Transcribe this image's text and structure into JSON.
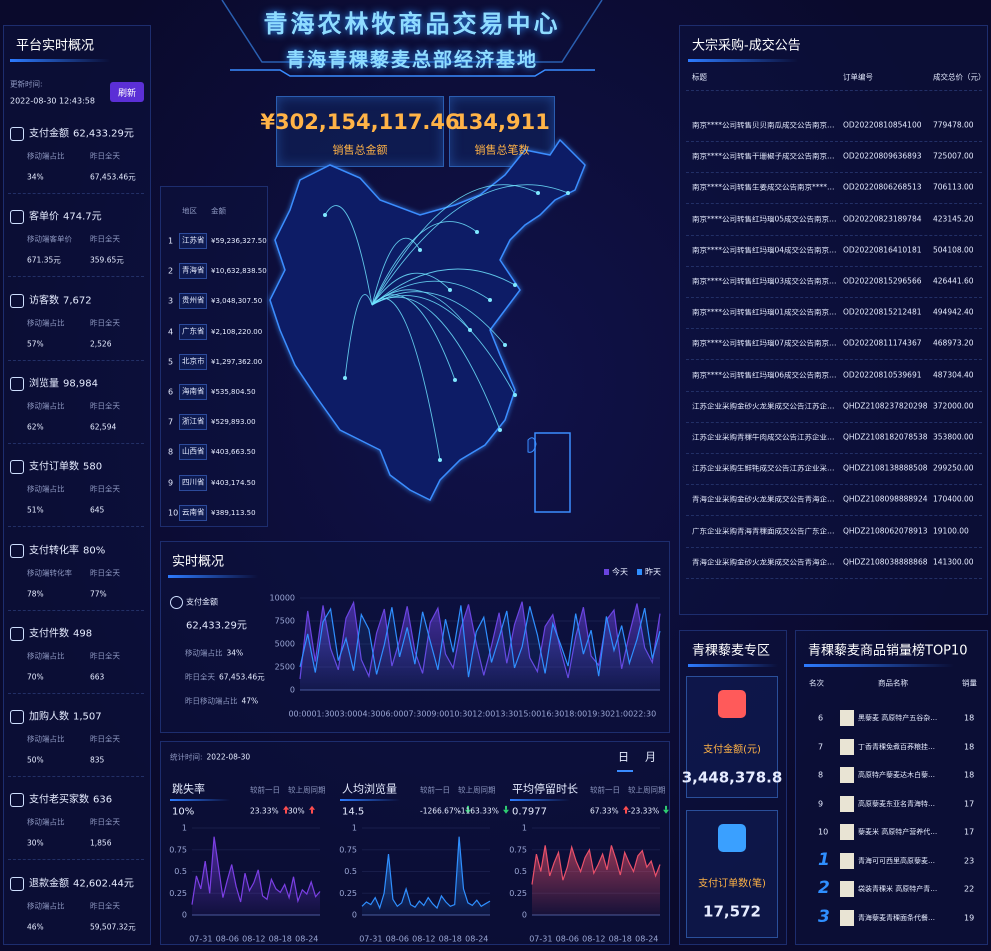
{
  "header": {
    "title": "青海农林牧商品交易中心",
    "subtitle": "青海青稞藜麦总部经济基地"
  },
  "kpi": [
    {
      "value": "¥302,154,117.46",
      "label": "销售总金额"
    },
    {
      "value": "134,911",
      "label": "销售总笔数"
    }
  ],
  "overview": {
    "title": "平台实时概况",
    "update_label": "更新时间:",
    "update_time": "2022-08-30 12:43:58",
    "refresh": "刷新",
    "metrics": [
      {
        "label": "支付金额",
        "value": "62,433.29元",
        "sub": [
          {
            "label": "移动端占比",
            "value": "34%"
          },
          {
            "label": "昨日全天",
            "value": "67,453.46元"
          }
        ]
      },
      {
        "label": "客单价",
        "value": "474.7元",
        "sub": [
          {
            "label": "移动端客单价",
            "value": "671.35元"
          },
          {
            "label": "昨日全天",
            "value": "359.65元"
          }
        ]
      },
      {
        "label": "访客数",
        "value": "7,672",
        "sub": [
          {
            "label": "移动端占比",
            "value": "57%"
          },
          {
            "label": "昨日全天",
            "value": "2,526"
          }
        ]
      },
      {
        "label": "浏览量",
        "value": "98,984",
        "sub": [
          {
            "label": "移动端占比",
            "value": "62%"
          },
          {
            "label": "昨日全天",
            "value": "62,594"
          }
        ]
      },
      {
        "label": "支付订单数",
        "value": "580",
        "sub": [
          {
            "label": "移动端占比",
            "value": "51%"
          },
          {
            "label": "昨日全天",
            "value": "645"
          }
        ]
      },
      {
        "label": "支付转化率",
        "value": "80%",
        "sub": [
          {
            "label": "移动端转化率",
            "value": "78%"
          },
          {
            "label": "昨日全天",
            "value": "77%"
          }
        ]
      },
      {
        "label": "支付件数",
        "value": "498",
        "sub": [
          {
            "label": "移动端占比",
            "value": "70%"
          },
          {
            "label": "昨日全天",
            "value": "663"
          }
        ]
      },
      {
        "label": "加购人数",
        "value": "1,507",
        "sub": [
          {
            "label": "移动端占比",
            "value": "50%"
          },
          {
            "label": "昨日全天",
            "value": "835"
          }
        ]
      },
      {
        "label": "支付老买家数",
        "value": "636",
        "sub": [
          {
            "label": "移动端占比",
            "value": "30%"
          },
          {
            "label": "昨日全天",
            "value": "1,856"
          }
        ]
      },
      {
        "label": "退款金额",
        "value": "42,602.44元",
        "sub": [
          {
            "label": "移动端占比",
            "value": "46%"
          },
          {
            "label": "昨日全天",
            "value": "59,507.32元"
          }
        ]
      }
    ]
  },
  "region_rank": {
    "headers": [
      "地区",
      "金额"
    ],
    "rows": [
      [
        1,
        "江苏省",
        "¥59,236,327.50"
      ],
      [
        2,
        "青海省",
        "¥10,632,838.50"
      ],
      [
        3,
        "贵州省",
        "¥3,048,307.50"
      ],
      [
        4,
        "广东省",
        "¥2,108,220.00"
      ],
      [
        5,
        "北京市",
        "¥1,297,362.00"
      ],
      [
        6,
        "海南省",
        "¥535,804.50"
      ],
      [
        7,
        "浙江省",
        "¥529,893.00"
      ],
      [
        8,
        "山西省",
        "¥403,663.50"
      ],
      [
        9,
        "四川省",
        "¥403,174.50"
      ],
      [
        10,
        "云南省",
        "¥389,113.50"
      ]
    ]
  },
  "announcements": {
    "title": "大宗采购-成交公告",
    "headers": [
      "标题",
      "订单编号",
      "成交总价（元）"
    ],
    "rows": [
      [
        "南京****公司转售贝贝南瓜成交公告南京****公司...",
        "OD20220810854100",
        "779478.00"
      ],
      [
        "南京****公司转售干珊椒子成交公告南京****公司...",
        "OD20220809636893",
        "725007.00"
      ],
      [
        "南京****公司转售生姜成交公告南京****公司...",
        "OD20220806268513",
        "706113.00"
      ],
      [
        "南京****公司转售红玛瑙05成交公告南京****公...",
        "OD20220823189784",
        "423145.20"
      ],
      [
        "南京****公司转售红玛瑙04成交公告南京****公...",
        "OD20220816410181",
        "504108.00"
      ],
      [
        "南京****公司转售红玛瑙03成交公告南京****公...",
        "OD20220815296566",
        "426441.60"
      ],
      [
        "南京****公司转售红玛瑙01成交公告南京****公...",
        "OD20220815212481",
        "494942.40"
      ],
      [
        "南京****公司转售红玛瑙07成交公告南京****公...",
        "OD20220811174367",
        "468973.20"
      ],
      [
        "南京****公司转售红玛瑙06成交公告南京****公...",
        "OD20220810539691",
        "487304.40"
      ],
      [
        "江苏企业采购金砂火龙果成交公告江苏企业采...",
        "QHDZ2108237820298",
        "372000.00"
      ],
      [
        "江苏企业采购青稞牛肉成交公告江苏企业采...",
        "QHDZ2108182078538",
        "353800.00"
      ],
      [
        "江苏企业采购生鲜牦成交公告江苏企业采购生...",
        "QHDZ2108138888508",
        "299250.00"
      ],
      [
        "青海企业采购金砂火龙果成交公告青海企业采...",
        "QHDZ2108098888924",
        "170400.00"
      ],
      [
        "广东企业采购青海青稞面成交公告广东企业采...",
        "QHDZ2108062078913",
        "19100.00"
      ],
      [
        "青海企业采购金砂火龙果成交公告青海企业采...",
        "QHDZ2108038888868",
        "141300.00"
      ]
    ]
  },
  "realtime": {
    "title": "实时概况",
    "pay_label": "支付金额",
    "pay_value": "62,433.29元",
    "rows": [
      [
        "移动端占比",
        "34%"
      ],
      [
        "昨日全天",
        "67,453.46元"
      ],
      [
        "昨日移动端占比",
        "47%"
      ]
    ]
  },
  "traffic": {
    "stat_label": "统计时间:",
    "stat_date": "2022-08-30",
    "tabs": [
      "日",
      "月"
    ],
    "items": [
      {
        "value": "10%",
        "compare": [
          {
            "label": "较前一日",
            "value": "23.33%",
            "trend": "up"
          },
          {
            "label": "较上周同期",
            "value": "30%",
            "trend": "up"
          }
        ]
      },
      {
        "value": "14.5",
        "compare": [
          {
            "label": "较前一日",
            "value": "-1266.67%",
            "trend": "down"
          },
          {
            "label": "较上周同期",
            "value": "-1163.33%",
            "trend": "down"
          }
        ]
      },
      {
        "value": "0.7977",
        "compare": [
          {
            "label": "较前一日",
            "value": "67.33%",
            "trend": "up"
          },
          {
            "label": "较上周同期",
            "value": "-23.33%",
            "trend": "down"
          }
        ]
      }
    ]
  },
  "zone": {
    "title": "青稞藜麦专区",
    "cards": [
      {
        "label": "支付金额(元)",
        "value": "3,448,378.8"
      },
      {
        "label": "支付订单数(笔)",
        "value": "17,572"
      }
    ]
  },
  "top10": {
    "title": "青稞藜麦商品销量榜TOP10",
    "headers": [
      "名次",
      "商品名称",
      "销量"
    ],
    "rows": [
      [
        6,
        "黑藜麦 高原特产五谷杂粮...",
        18
      ],
      [
        7,
        "丁香青稞免煮百荞粮挂面...",
        18
      ],
      [
        8,
        "高原特产藜麦达木白藜麦米...",
        18
      ],
      [
        9,
        "高原藜麦东亚名青海特产藜...",
        17
      ],
      [
        10,
        "藜麦米 高原特产营养代餐...",
        17
      ],
      [
        1,
        "青海可可西里高原藜麦营养...",
        23
      ],
      [
        2,
        "袋装青稞米 高原特产青稞...",
        22
      ],
      [
        3,
        "青海藜麦青稞面条代餐粉...",
        19
      ]
    ]
  },
  "chart_data": [
    {
      "type": "area",
      "categories": [
        "00:00",
        null,
        null,
        "01:30",
        null,
        null,
        "03:00",
        null,
        null,
        "04:30",
        null,
        null,
        "06:00",
        null,
        null,
        "07:30",
        null,
        null,
        "09:00",
        null,
        null,
        "10:30",
        null,
        null,
        "12:00",
        null,
        null,
        "13:30",
        null,
        null,
        "15:00",
        null,
        null,
        "16:30",
        null,
        null,
        "18:00",
        null,
        null,
        "19:30",
        null,
        null,
        "21:00",
        null,
        null,
        "22:30",
        null,
        null
      ],
      "series": [
        {
          "name": "今天",
          "color": "#6a44e0",
          "values": [
            1200,
            8600,
            3100,
            9200,
            4500,
            2200,
            7800,
            9500,
            3300,
            1500,
            6200,
            8800,
            2600,
            5400,
            9100,
            4200,
            1800,
            7300,
            8900,
            3900,
            2400,
            6700,
            9300,
            5100,
            1600,
            4800,
            8400,
            2900,
            7100,
            9600,
            3500,
            2000,
            6900,
            8200,
            4400,
            1300,
            5800,
            9000,
            3700,
            2700,
            7600,
            8700,
            2300,
            6100,
            9400,
            4600,
            3000,
            8300
          ]
        },
        {
          "name": "昨天",
          "color": "#2f8fff",
          "values": [
            2500,
            6100,
            1900,
            7400,
            8800,
            3200,
            5600,
            2100,
            8200,
            6600,
            1700,
            4900,
            9000,
            3600,
            6800,
            2800,
            8500,
            5300,
            2200,
            7700,
            4100,
            9200,
            1400,
            6300,
            7900,
            3000,
            5700,
            8600,
            2400,
            4700,
            9100,
            6000,
            1800,
            7200,
            5000,
            2600,
            8300,
            3900,
            6500,
            1500,
            8000,
            4300,
            7000,
            2900,
            5500,
            8900,
            3400,
            6400
          ]
        }
      ],
      "ylim": [
        0,
        10000
      ],
      "yticks": [
        0,
        2500,
        5000,
        7500,
        10000
      ],
      "legend": "top-right"
    },
    {
      "type": "area",
      "title": "跳失率",
      "color": "#7b3fe4",
      "categories": [
        null,
        null,
        "07-31",
        null,
        null,
        null,
        null,
        null,
        "08-06",
        null,
        null,
        null,
        null,
        null,
        "08-12",
        null,
        null,
        null,
        null,
        null,
        "08-18",
        null,
        null,
        null,
        null,
        null,
        "08-24",
        null,
        null,
        null
      ],
      "values": [
        0.12,
        0.45,
        0.3,
        0.62,
        0.25,
        0.9,
        0.55,
        0.2,
        0.4,
        0.58,
        0.33,
        0.15,
        0.48,
        0.28,
        0.37,
        0.52,
        0.22,
        0.18,
        0.41,
        0.3,
        0.26,
        0.35,
        0.2,
        0.44,
        0.16,
        0.29,
        0.24,
        0.38,
        0.21,
        0.27
      ],
      "ylim": [
        0,
        1
      ],
      "yticks": [
        0,
        0.25,
        0.5,
        0.75,
        1
      ]
    },
    {
      "type": "area",
      "title": "人均浏览量",
      "color": "#2f8fff",
      "categories": [
        null,
        null,
        "07-31",
        null,
        null,
        null,
        null,
        null,
        "08-06",
        null,
        null,
        null,
        null,
        null,
        "08-12",
        null,
        null,
        null,
        null,
        null,
        "08-18",
        null,
        null,
        null,
        null,
        null,
        "08-24",
        null,
        null,
        null
      ],
      "values": [
        0.1,
        0.15,
        0.12,
        0.2,
        0.08,
        0.25,
        0.7,
        0.18,
        0.1,
        0.14,
        0.3,
        0.12,
        0.09,
        0.16,
        0.11,
        0.2,
        0.13,
        0.08,
        0.22,
        0.15,
        0.1,
        0.12,
        0.9,
        0.3,
        0.14,
        0.11,
        0.17,
        0.1,
        0.13,
        0.16
      ],
      "ylim": [
        0,
        1
      ],
      "yticks": [
        0,
        0.25,
        0.5,
        0.75,
        1
      ]
    },
    {
      "type": "area",
      "title": "平均停留时长",
      "color": "#e8506a",
      "categories": [
        null,
        null,
        "07-31",
        null,
        null,
        null,
        null,
        null,
        "08-06",
        null,
        null,
        null,
        null,
        null,
        "08-12",
        null,
        null,
        null,
        null,
        null,
        "08-18",
        null,
        null,
        null,
        null,
        null,
        "08-24",
        null,
        null,
        null
      ],
      "values": [
        0.35,
        0.7,
        0.5,
        0.8,
        0.45,
        0.6,
        0.72,
        0.4,
        0.55,
        0.78,
        0.62,
        0.5,
        0.66,
        0.75,
        0.48,
        0.58,
        0.7,
        0.52,
        0.8,
        0.64,
        0.46,
        0.72,
        0.6,
        0.5,
        0.68,
        0.74,
        0.55,
        0.62,
        0.45,
        0.58
      ],
      "ylim": [
        0,
        1
      ],
      "yticks": [
        0,
        0.25,
        0.5,
        0.75,
        1
      ]
    }
  ]
}
